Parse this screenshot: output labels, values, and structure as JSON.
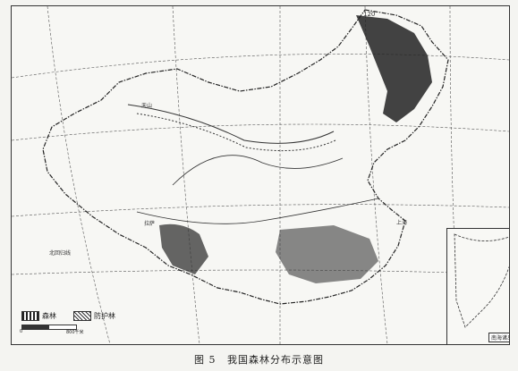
{
  "caption": {
    "figure_no": "图 5",
    "title": "我国森林分布示意图"
  },
  "legend": {
    "items": [
      {
        "label": "森林",
        "pattern": "forest"
      },
      {
        "label": "防护林",
        "pattern": "shelterbelt"
      }
    ],
    "scale": {
      "start": "0",
      "end": "800千米"
    }
  },
  "map_labels": {
    "top_longitude": "120",
    "tropic": "北回归线",
    "xinjiang_range": "天山",
    "shanghai": "上海",
    "lhasa": "拉萨",
    "inset_title": "南海诸岛"
  },
  "colors": {
    "ink": "#2a2a2a",
    "paper": "#f7f7f4",
    "forest_dark": "#222222"
  }
}
